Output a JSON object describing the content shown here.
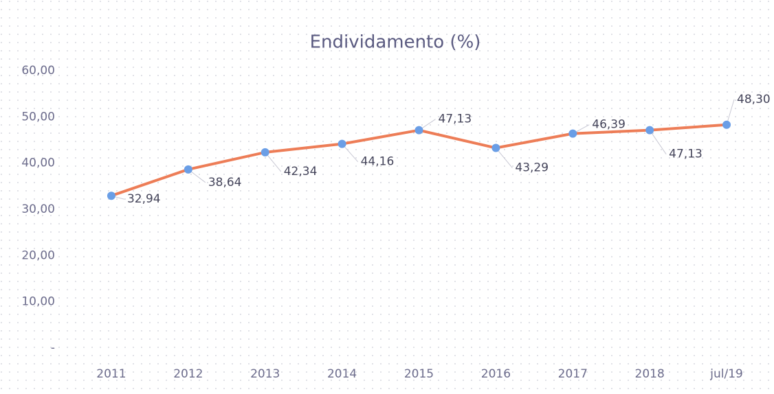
{
  "chart_data": {
    "type": "line",
    "title": "Endividamento (%)",
    "categories": [
      "2011",
      "2012",
      "2013",
      "2014",
      "2015",
      "2016",
      "2017",
      "2018",
      "jul/19"
    ],
    "values": [
      32.94,
      38.64,
      42.34,
      44.16,
      47.13,
      43.29,
      46.39,
      47.13,
      48.3
    ],
    "value_labels": [
      "32,94",
      "38,64",
      "42,34",
      "44,16",
      "47,13",
      "43,29",
      "46,39",
      "47,13",
      "48,30"
    ],
    "color": "#ed7d57",
    "marker_color": "#6a9ee6",
    "ylim": [
      0,
      60
    ],
    "yticks": [
      {
        "value": 0,
        "label": "-"
      },
      {
        "value": 10,
        "label": "10,00"
      },
      {
        "value": 20,
        "label": "20,00"
      },
      {
        "value": 30,
        "label": "30,00"
      },
      {
        "value": 40,
        "label": "40,00"
      },
      {
        "value": 50,
        "label": "50,00"
      },
      {
        "value": 60,
        "label": "60,00"
      }
    ],
    "grid": false
  }
}
